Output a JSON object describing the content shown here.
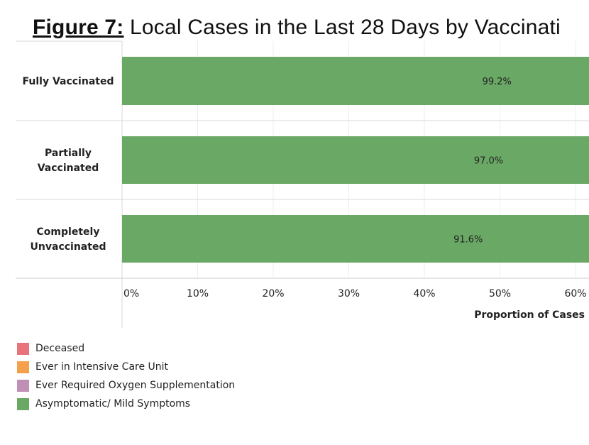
{
  "figure": {
    "label": "Figure 7:",
    "title": "Local Cases in the Last 28 Days by Vaccinati"
  },
  "chart_data": {
    "type": "bar",
    "orientation": "horizontal",
    "categories": [
      "Fully Vaccinated",
      "Partially Vaccinated",
      "Completely Unvaccinated"
    ],
    "category_lines": [
      [
        "Fully Vaccinated"
      ],
      [
        "Partially",
        "Vaccinated"
      ],
      [
        "Completely",
        "Unvaccinated"
      ]
    ],
    "series": [
      {
        "name": "Asymptomatic/ Mild Symptoms",
        "color": "#6aa865",
        "values": [
          99.2,
          97.0,
          91.6
        ],
        "labels": [
          "99.2%",
          "97.0%",
          "91.6%"
        ]
      }
    ],
    "xlabel": "Proportion of Cases",
    "xlim": [
      0,
      60
    ],
    "ticks": [
      0,
      10,
      20,
      30,
      40,
      50,
      60
    ],
    "tick_labels": [
      "0%",
      "10%",
      "20%",
      "30%",
      "40%",
      "50%",
      "60%"
    ],
    "grid": true
  },
  "legend": [
    {
      "label": "Deceased",
      "color": "#e8737a"
    },
    {
      "label": "Ever in Intensive Care Unit",
      "color": "#f5a04c"
    },
    {
      "label": "Ever Required Oxygen Supplementation",
      "color": "#c08fb5"
    },
    {
      "label": "Asymptomatic/ Mild Symptoms",
      "color": "#6aa865"
    }
  ]
}
